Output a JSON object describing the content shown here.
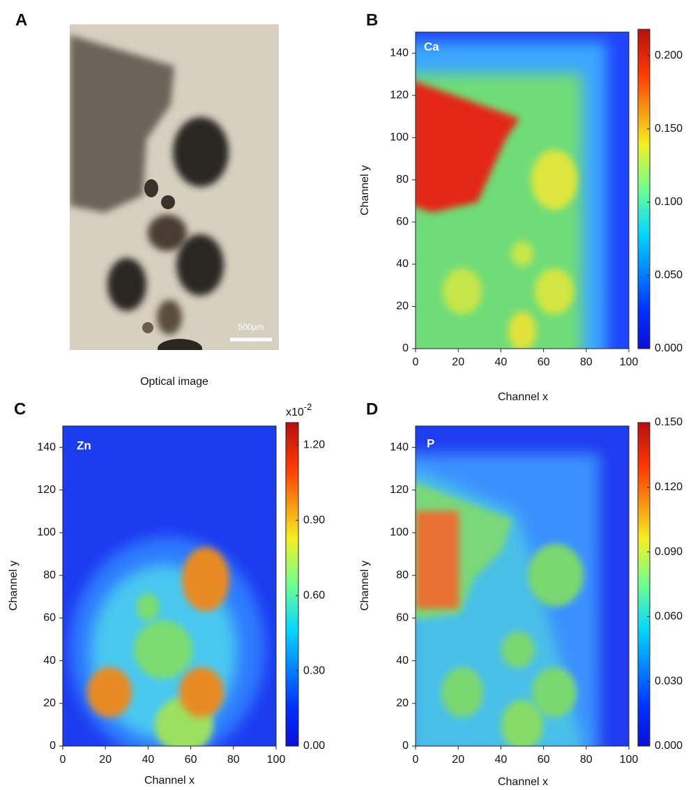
{
  "panel_a": {
    "label": "A",
    "caption": "Optical image",
    "scale_bar": "500µm"
  },
  "chart_data": [
    {
      "type": "heatmap",
      "panel_label": "B",
      "element": "Ca",
      "xlabel": "Channel x",
      "ylabel": "Channel y",
      "xlim": [
        0,
        100
      ],
      "ylim": [
        0,
        150
      ],
      "xticks": [
        0,
        20,
        40,
        60,
        80,
        100
      ],
      "yticks": [
        0,
        20,
        40,
        60,
        80,
        100,
        120,
        140
      ],
      "colormap": "jet",
      "clim": [
        0,
        0.218
      ],
      "colorbar_ticks": [
        {
          "value": 0,
          "label": "0.000"
        },
        {
          "value": 0.05,
          "label": "0.050"
        },
        {
          "value": 0.1,
          "label": "0.100"
        },
        {
          "value": 0.15,
          "label": "0.150"
        },
        {
          "value": 0.2,
          "label": "0.200"
        }
      ]
    },
    {
      "type": "heatmap",
      "panel_label": "C",
      "element": "Zn",
      "xlabel": "Channel x",
      "ylabel": "Channel y",
      "xlim": [
        0,
        100
      ],
      "ylim": [
        0,
        150
      ],
      "xticks": [
        0,
        20,
        40,
        60,
        80,
        100
      ],
      "yticks": [
        0,
        20,
        40,
        60,
        80,
        100,
        120,
        140
      ],
      "colormap": "jet",
      "clim": [
        0,
        1.29
      ],
      "colorbar_label": "x10",
      "colorbar_label_exponent": "-2",
      "colorbar_ticks": [
        {
          "value": 0,
          "label": "0.00"
        },
        {
          "value": 0.3,
          "label": "0.30"
        },
        {
          "value": 0.6,
          "label": "0.60"
        },
        {
          "value": 0.9,
          "label": "0.90"
        },
        {
          "value": 1.2,
          "label": "1.20"
        }
      ]
    },
    {
      "type": "heatmap",
      "panel_label": "D",
      "element": "P",
      "xlabel": "Channel x",
      "ylabel": "Channel y",
      "xlim": [
        0,
        100
      ],
      "ylim": [
        0,
        150
      ],
      "xticks": [
        0,
        20,
        40,
        60,
        80,
        100
      ],
      "yticks": [
        0,
        20,
        40,
        60,
        80,
        100,
        120,
        140
      ],
      "colormap": "jet",
      "clim": [
        0,
        0.15
      ],
      "colorbar_ticks": [
        {
          "value": 0,
          "label": "0.000"
        },
        {
          "value": 0.03,
          "label": "0.030"
        },
        {
          "value": 0.06,
          "label": "0.060"
        },
        {
          "value": 0.09,
          "label": "0.090"
        },
        {
          "value": 0.12,
          "label": "0.120"
        },
        {
          "value": 0.15,
          "label": "0.150"
        }
      ]
    }
  ]
}
